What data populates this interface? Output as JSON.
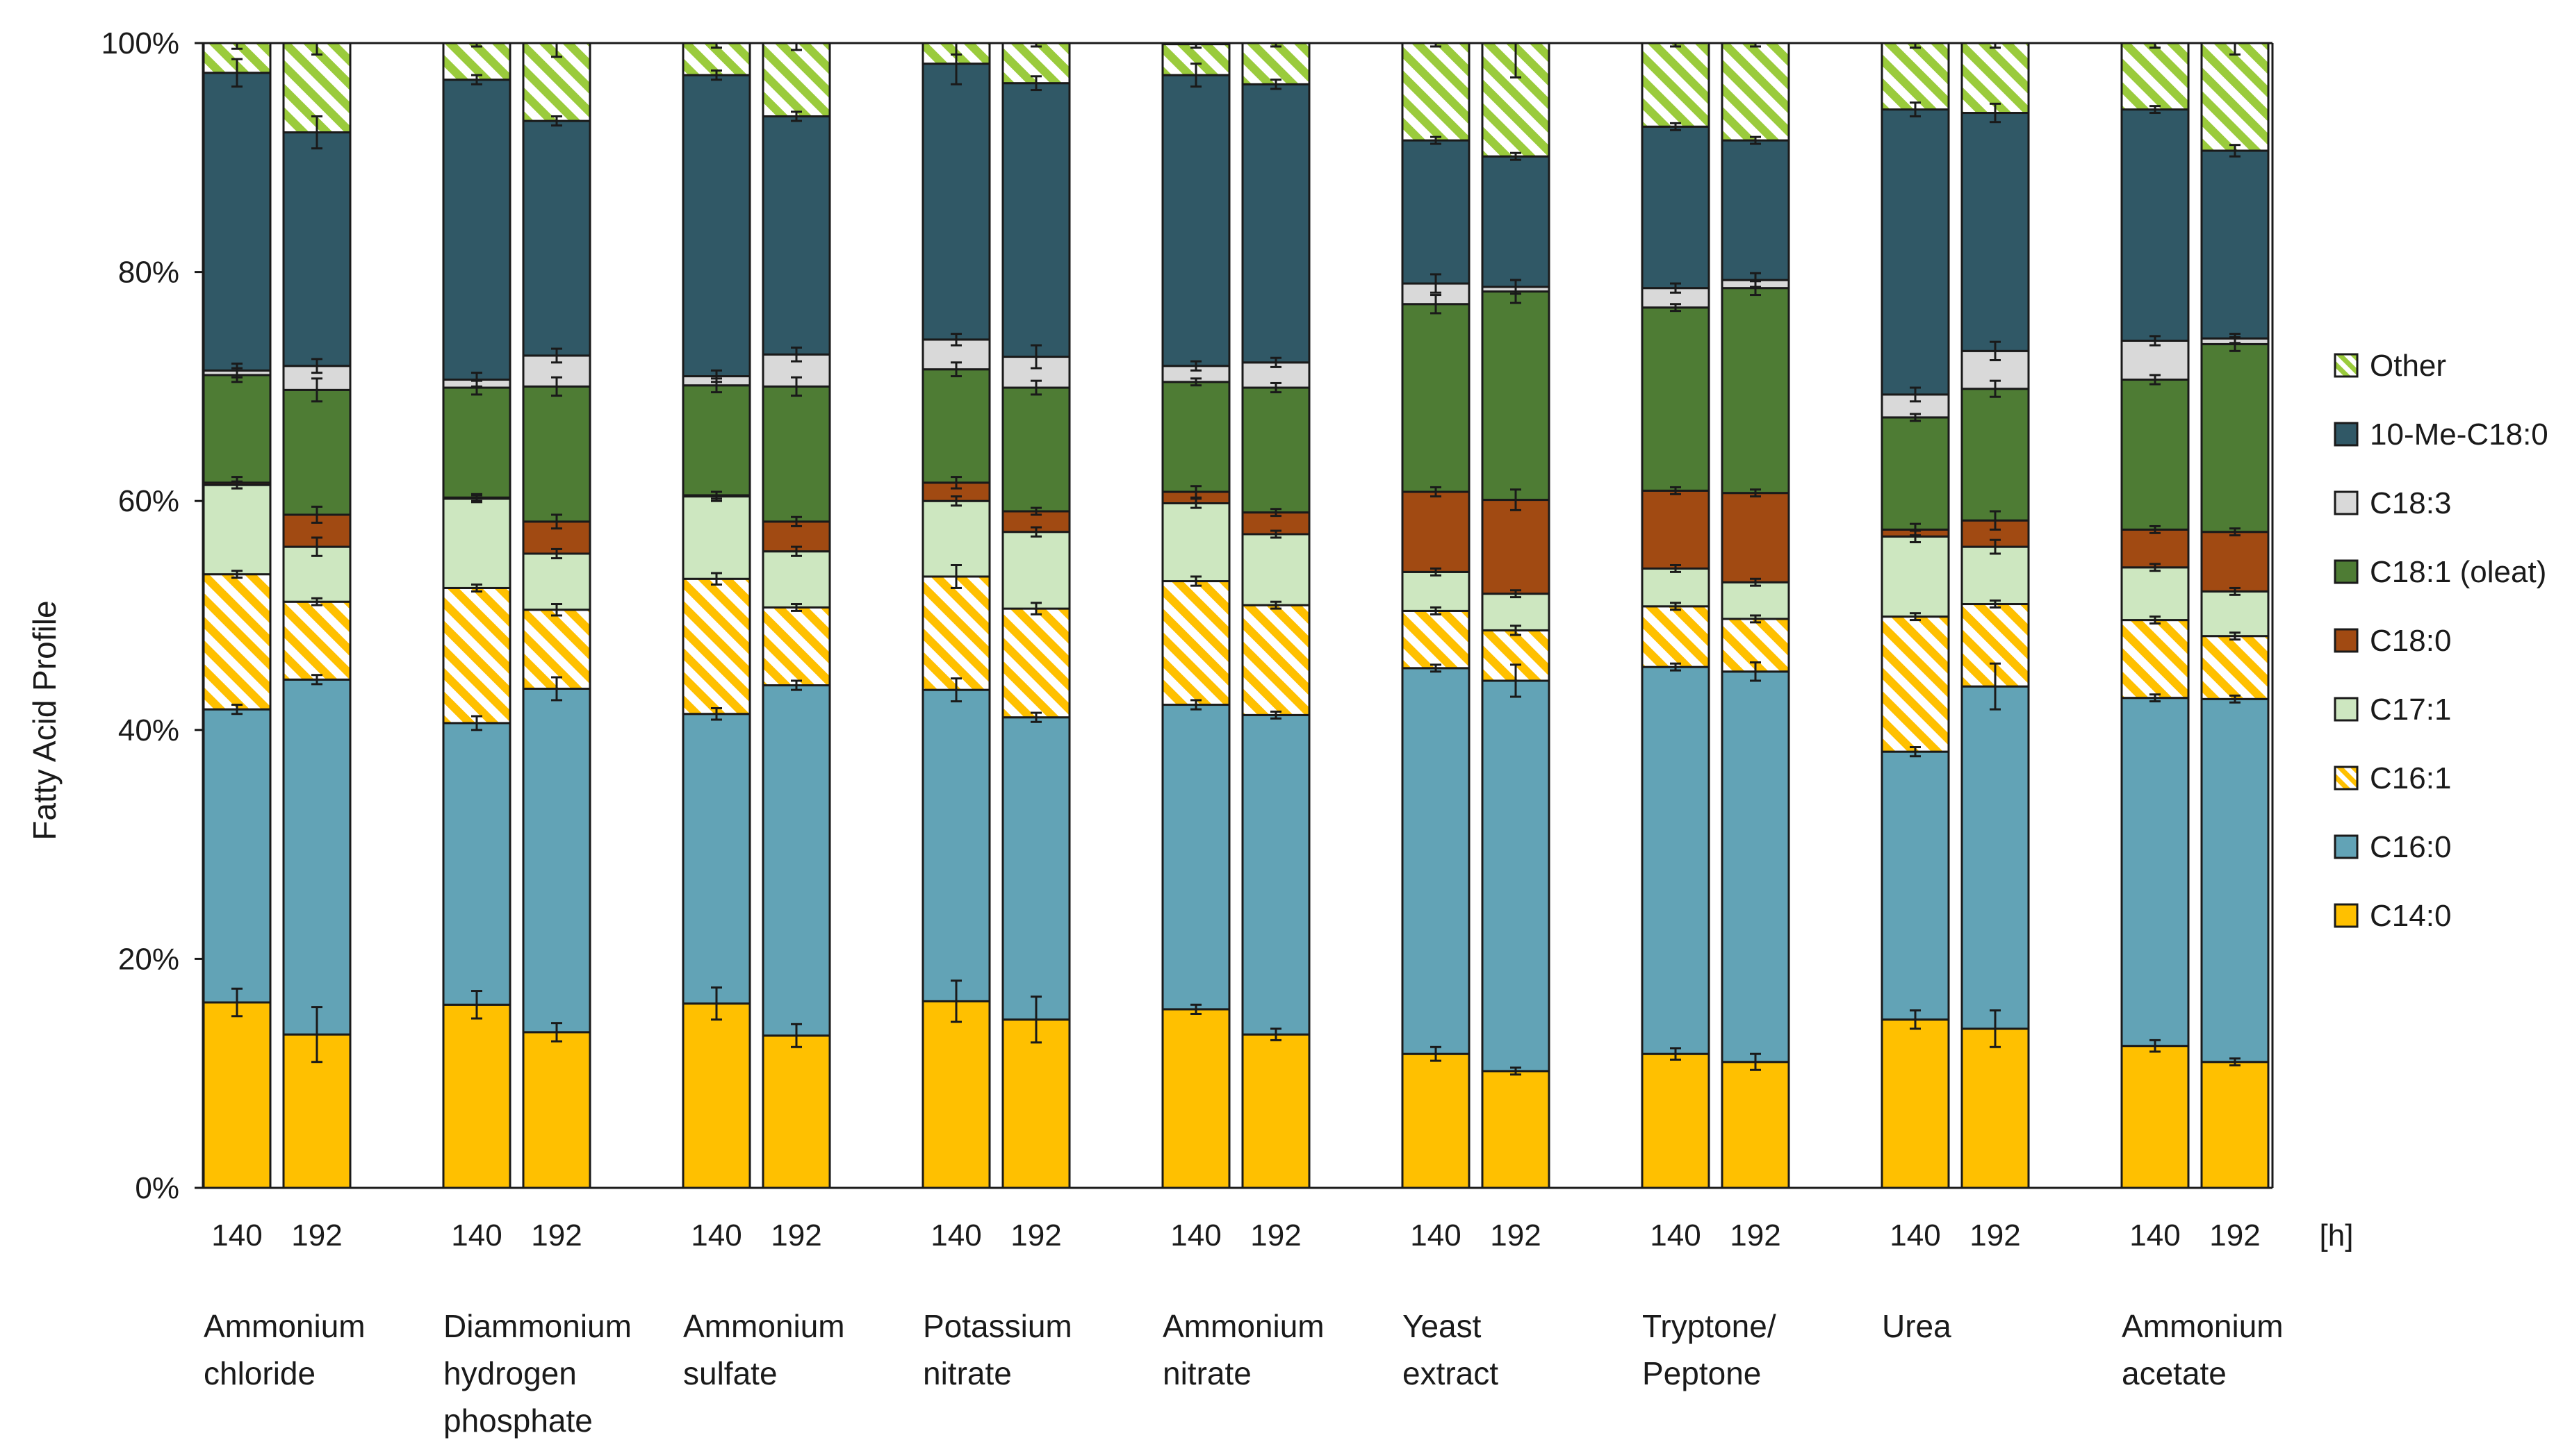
{
  "chart_data": {
    "type": "bar",
    "stacked": true,
    "ylabel": "Fatty Acid Profile",
    "ylim": [
      0,
      100
    ],
    "y_ticks": [
      "0%",
      "20%",
      "40%",
      "60%",
      "80%",
      "100%"
    ],
    "x_unit": "[h]",
    "groups": [
      {
        "lines": [
          "Ammonium",
          "chloride"
        ]
      },
      {
        "lines": [
          "Diammonium",
          "hydrogen",
          "phosphate"
        ]
      },
      {
        "lines": [
          "Ammonium",
          "sulfate"
        ]
      },
      {
        "lines": [
          "Potassium",
          "nitrate"
        ]
      },
      {
        "lines": [
          "Ammonium",
          "nitrate"
        ]
      },
      {
        "lines": [
          "Yeast",
          "extract"
        ]
      },
      {
        "lines": [
          "Tryptone/",
          "Peptone"
        ]
      },
      {
        "lines": [
          "Urea"
        ]
      },
      {
        "lines": [
          "Ammonium",
          "acetate"
        ]
      }
    ],
    "timepoints": [
      "140",
      "192"
    ],
    "series": [
      {
        "name": "C14:0",
        "color": "#FFC000",
        "pattern": "solid",
        "values": [
          16.2,
          13.4,
          16.0,
          13.6,
          16.1,
          13.3,
          16.3,
          14.7,
          15.6,
          13.4,
          11.7,
          10.2,
          11.7,
          11.0,
          14.7,
          13.9,
          12.4,
          11.0
        ]
      },
      {
        "name": "C16:0",
        "color": "#62A3B6",
        "pattern": "solid",
        "values": [
          25.6,
          31.0,
          24.6,
          30.0,
          25.3,
          30.6,
          27.2,
          26.4,
          26.6,
          27.9,
          33.7,
          34.1,
          33.8,
          34.1,
          23.4,
          29.9,
          30.4,
          31.7
        ]
      },
      {
        "name": "C16:1",
        "color": "#FFC000",
        "pattern": "hatch",
        "values": [
          11.8,
          6.8,
          11.8,
          6.9,
          11.8,
          6.8,
          9.9,
          9.5,
          10.8,
          9.6,
          5.0,
          4.4,
          5.3,
          4.6,
          11.8,
          7.2,
          6.8,
          5.5
        ]
      },
      {
        "name": "C17:1",
        "color": "#CDE7C0",
        "pattern": "solid",
        "values": [
          7.8,
          4.8,
          7.8,
          4.9,
          7.2,
          4.9,
          6.6,
          6.7,
          6.8,
          6.2,
          3.4,
          3.2,
          3.3,
          3.2,
          7.0,
          5.0,
          4.6,
          3.9
        ]
      },
      {
        "name": "C18:0",
        "color": "#A14A12",
        "pattern": "solid",
        "values": [
          0.2,
          2.8,
          0.1,
          2.8,
          0.1,
          2.6,
          1.6,
          1.8,
          1.0,
          1.9,
          7.0,
          8.2,
          6.8,
          7.8,
          0.6,
          2.3,
          3.3,
          5.2
        ]
      },
      {
        "name": "C18:1 (oleat)",
        "color": "#4E7C34",
        "pattern": "solid",
        "values": [
          9.4,
          10.9,
          9.6,
          11.8,
          9.6,
          11.8,
          9.9,
          10.8,
          9.6,
          10.9,
          16.4,
          18.2,
          16.0,
          17.9,
          9.8,
          11.5,
          13.1,
          16.4
        ]
      },
      {
        "name": "C18:3",
        "color": "#D9D9D9",
        "pattern": "solid",
        "values": [
          0.4,
          2.1,
          0.7,
          2.7,
          0.8,
          2.8,
          2.6,
          2.7,
          1.4,
          2.2,
          1.8,
          0.4,
          1.7,
          0.7,
          2.0,
          3.3,
          3.4,
          0.5
        ]
      },
      {
        "name": "10-Me-C18:0",
        "color": "#305866",
        "pattern": "solid",
        "values": [
          26.0,
          20.4,
          26.2,
          20.5,
          26.3,
          20.8,
          24.1,
          23.9,
          25.4,
          24.3,
          12.5,
          11.4,
          14.1,
          12.2,
          24.9,
          20.8,
          20.2,
          16.4
        ]
      },
      {
        "name": "Other",
        "color": "#9ACB3C",
        "pattern": "hatch",
        "values": [
          2.6,
          7.8,
          3.2,
          6.8,
          2.8,
          6.4,
          1.8,
          3.5,
          2.7,
          3.6,
          8.5,
          9.9,
          7.3,
          8.5,
          5.8,
          6.1,
          5.8,
          9.4
        ]
      }
    ],
    "error_bars": [
      [
        1.2,
        2.4,
        1.2,
        0.8,
        1.4,
        1.0,
        1.8,
        2.0,
        0.4,
        0.5,
        0.6,
        0.3,
        0.5,
        0.7,
        0.8,
        1.6,
        0.5,
        0.3
      ],
      [
        0.4,
        0.4,
        0.6,
        1.0,
        0.5,
        0.4,
        1.0,
        0.4,
        0.4,
        0.3,
        0.3,
        1.4,
        0.3,
        0.8,
        0.4,
        2.0,
        0.3,
        0.3
      ],
      [
        0.3,
        0.3,
        0.3,
        0.5,
        0.5,
        0.3,
        1.0,
        0.5,
        0.4,
        0.3,
        0.3,
        0.4,
        0.3,
        0.3,
        0.3,
        0.3,
        0.3,
        0.3
      ],
      [
        0.3,
        0.8,
        0.3,
        0.4,
        0.4,
        0.4,
        0.4,
        0.4,
        0.4,
        0.3,
        0.3,
        0.3,
        0.3,
        0.3,
        0.5,
        0.6,
        0.3,
        0.3
      ],
      [
        0.5,
        0.7,
        0.3,
        0.6,
        0.3,
        0.4,
        0.5,
        0.3,
        0.5,
        0.3,
        0.4,
        0.9,
        0.3,
        0.3,
        0.5,
        0.8,
        0.3,
        0.3
      ],
      [
        0.6,
        1.0,
        0.6,
        0.8,
        0.6,
        0.8,
        0.6,
        0.6,
        0.3,
        0.4,
        0.8,
        1.0,
        0.3,
        0.6,
        0.3,
        0.7,
        0.4,
        0.6
      ],
      [
        0.6,
        0.6,
        0.6,
        0.6,
        0.5,
        0.6,
        0.5,
        1.0,
        0.4,
        0.4,
        0.8,
        0.6,
        0.4,
        0.6,
        0.6,
        0.8,
        0.4,
        0.4
      ],
      [
        1.2,
        1.4,
        0.4,
        0.4,
        0.4,
        0.4,
        1.8,
        0.6,
        1.0,
        0.4,
        0.3,
        0.3,
        0.3,
        0.3,
        0.6,
        0.8,
        0.3,
        0.5
      ],
      [
        0.5,
        1.0,
        0.3,
        1.2,
        0.4,
        0.6,
        1.0,
        0.3,
        0.3,
        0.3,
        0.3,
        3.0,
        0.3,
        0.3,
        0.4,
        0.4,
        0.4,
        1.0
      ]
    ],
    "legend_position": "right"
  }
}
